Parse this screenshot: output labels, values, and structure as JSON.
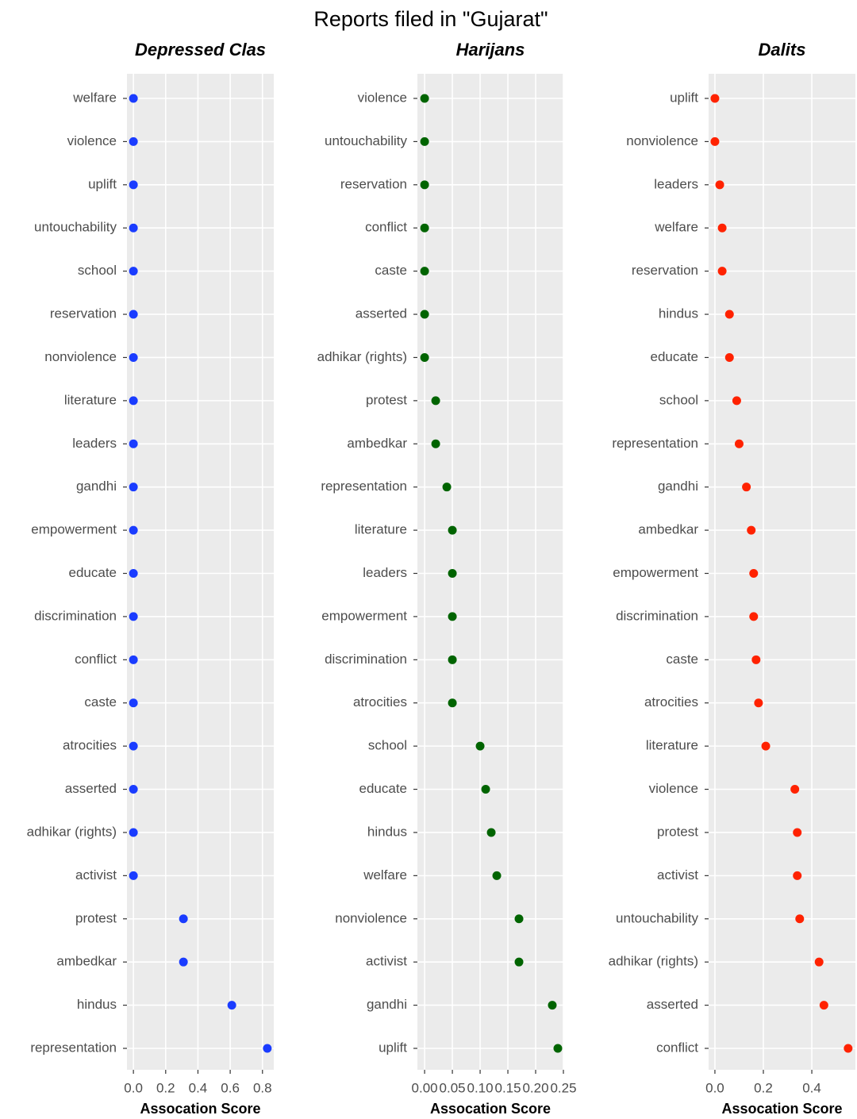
{
  "title": "Reports filed in \"Gujarat\"",
  "chart_data": [
    {
      "type": "dot",
      "title": "Depressed Clas",
      "xlabel": "Assocation Score",
      "color": "#1a3cff",
      "categories": [
        "welfare",
        "violence",
        "uplift",
        "untouchability",
        "school",
        "reservation",
        "nonviolence",
        "literature",
        "leaders",
        "gandhi",
        "empowerment",
        "educate",
        "discrimination",
        "conflict",
        "caste",
        "atrocities",
        "asserted",
        "adhikar (rights)",
        "activist",
        "protest",
        "ambedkar",
        "hindus",
        "representation"
      ],
      "values": [
        0,
        0,
        0,
        0,
        0,
        0,
        0,
        0,
        0,
        0,
        0,
        0,
        0,
        0,
        0,
        0,
        0,
        0,
        0,
        0.31,
        0.31,
        0.61,
        0.83
      ],
      "xlim": [
        -0.04,
        0.87
      ],
      "xticks": [
        {
          "value": 0,
          "label": "0.0"
        },
        0.2,
        0.4,
        0.6,
        0.8
      ],
      "grid": true
    },
    {
      "type": "dot",
      "title": "Harijans",
      "xlabel": "Assocation Score",
      "color": "#006400",
      "categories": [
        "violence",
        "untouchability",
        "reservation",
        "conflict",
        "caste",
        "asserted",
        "adhikar (rights)",
        "protest",
        "ambedkar",
        "representation",
        "literature",
        "leaders",
        "empowerment",
        "discrimination",
        "atrocities",
        "school",
        "educate",
        "hindus",
        "welfare",
        "nonviolence",
        "activist",
        "gandhi",
        "uplift"
      ],
      "values": [
        0,
        0,
        0,
        0,
        0,
        0,
        0,
        0.02,
        0.02,
        0.04,
        0.05,
        0.05,
        0.05,
        0.05,
        0.05,
        0.1,
        0.11,
        0.12,
        0.13,
        0.17,
        0.17,
        0.23,
        0.24
      ],
      "xlim": [
        -0.013,
        0.25
      ],
      "xticks": [
        {
          "value": 0,
          "label": "0.00"
        },
        0.05,
        {
          "value": 0.1,
          "label": "0.10"
        },
        0.15,
        {
          "value": 0.2,
          "label": "0.20"
        },
        0.25
      ],
      "grid": true
    },
    {
      "type": "dot",
      "title": "Dalits",
      "xlabel": "Assocation Score",
      "color": "#ff2200",
      "categories": [
        "uplift",
        "nonviolence",
        "leaders",
        "welfare",
        "reservation",
        "hindus",
        "educate",
        "school",
        "representation",
        "gandhi",
        "ambedkar",
        "empowerment",
        "discrimination",
        "caste",
        "atrocities",
        "literature",
        "violence",
        "protest",
        "activist",
        "untouchability",
        "adhikar (rights)",
        "asserted",
        "conflict"
      ],
      "values": [
        0,
        0,
        0.02,
        0.03,
        0.03,
        0.06,
        0.06,
        0.09,
        0.1,
        0.13,
        0.15,
        0.16,
        0.16,
        0.17,
        0.18,
        0.21,
        0.33,
        0.34,
        0.34,
        0.35,
        0.43,
        0.45,
        0.55
      ],
      "xlim": [
        -0.026,
        0.58
      ],
      "xticks": [
        {
          "value": 0,
          "label": "0.0"
        },
        0.2,
        0.4
      ],
      "grid": true
    }
  ]
}
